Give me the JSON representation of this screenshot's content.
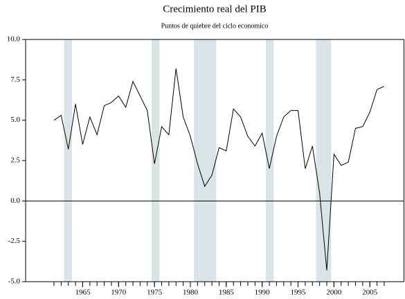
{
  "chart_data": {
    "type": "line",
    "title": "Crecimiento real del PIB",
    "subtitle": "Puntos de quiebre del ciclo economico",
    "x": [
      1961,
      1962,
      1963,
      1964,
      1965,
      1966,
      1967,
      1968,
      1969,
      1970,
      1971,
      1972,
      1973,
      1974,
      1975,
      1976,
      1977,
      1978,
      1979,
      1980,
      1981,
      1982,
      1983,
      1984,
      1985,
      1986,
      1987,
      1988,
      1989,
      1990,
      1991,
      1992,
      1993,
      1994,
      1995,
      1996,
      1997,
      1998,
      1999,
      2000,
      2001,
      2002,
      2003,
      2004,
      2005,
      2006,
      2007
    ],
    "values": [
      5.0,
      5.3,
      3.2,
      6.0,
      3.5,
      5.2,
      4.1,
      5.9,
      6.1,
      6.5,
      5.8,
      7.4,
      6.5,
      5.6,
      2.3,
      4.6,
      4.1,
      8.2,
      5.2,
      4.0,
      2.3,
      0.9,
      1.6,
      3.3,
      3.1,
      5.7,
      5.2,
      4.0,
      3.4,
      4.2,
      2.0,
      4.0,
      5.2,
      5.6,
      5.6,
      2.0,
      3.4,
      0.5,
      -4.3,
      2.9,
      2.2,
      2.4,
      4.5,
      4.6,
      5.5,
      6.9,
      7.1
    ],
    "color": "#000000",
    "shaded_periods": [
      [
        1962.4,
        1963.5
      ],
      [
        1974.6,
        1975.7
      ],
      [
        1980.5,
        1983.6
      ],
      [
        1990.5,
        1991.6
      ],
      [
        1997.5,
        1999.6
      ]
    ],
    "shade_color": "#d9e4e6",
    "xlim": [
      1957.05,
      2009.8
    ],
    "xticks": [
      1965,
      1970,
      1975,
      1980,
      1985,
      1990,
      1995,
      2000,
      2005
    ],
    "xminorticks": [
      1961,
      1962,
      1963,
      1964,
      1965,
      1966,
      1967,
      1968,
      1969,
      1970,
      1971,
      1972,
      1973,
      1974,
      1975,
      1976,
      1977,
      1978,
      1979,
      1980,
      1981,
      1982,
      1983,
      1984,
      1985,
      1986,
      1987,
      1988,
      1989,
      1990,
      1991,
      1992,
      1993,
      1994,
      1995,
      1996,
      1997,
      1998,
      1999,
      2000,
      2001,
      2002,
      2003,
      2004,
      2005,
      2006,
      2007
    ],
    "ylim": [
      -5,
      10
    ],
    "yticks": [
      {
        "value": 10,
        "label": "10.0"
      },
      7.5,
      {
        "value": 5,
        "label": "5.0"
      },
      2.5,
      {
        "value": 0,
        "label": "0.0"
      },
      -2.5,
      {
        "value": -5,
        "label": "-5.0"
      }
    ],
    "zero_line": true
  }
}
